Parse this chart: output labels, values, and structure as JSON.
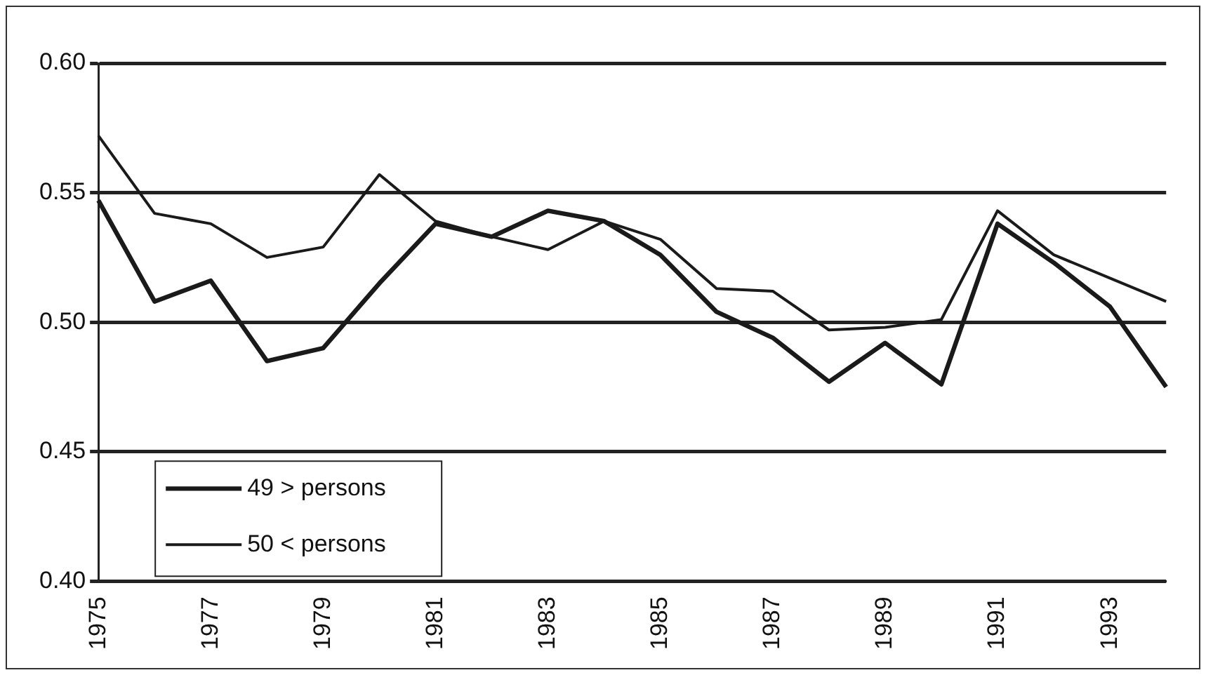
{
  "chart_data": {
    "type": "line",
    "categories": [
      "1975",
      null,
      "1977",
      null,
      "1979",
      null,
      "1981",
      null,
      "1983",
      null,
      "1985",
      null,
      "1987",
      null,
      "1989",
      null,
      "1991",
      null,
      "1993",
      null
    ],
    "series": [
      {
        "name": "49 > persons",
        "color": "#1a1a1a",
        "values": [
          0.547,
          0.508,
          0.516,
          0.485,
          0.49,
          0.515,
          0.538,
          0.533,
          0.543,
          0.539,
          0.526,
          0.504,
          0.494,
          0.477,
          0.492,
          0.476,
          0.538,
          0.523,
          0.506,
          0.475
        ]
      },
      {
        "name": "50 < persons",
        "color": "#1a1a1a",
        "values": [
          0.572,
          0.542,
          0.538,
          0.525,
          0.529,
          0.557,
          0.539,
          0.533,
          0.528,
          0.539,
          0.532,
          0.513,
          0.512,
          0.497,
          0.498,
          0.501,
          0.543,
          0.526,
          0.517,
          0.508
        ]
      }
    ],
    "ylim": [
      0.4,
      0.6
    ],
    "yticks": [
      {
        "value": 0.4,
        "label": "0.40"
      },
      {
        "value": 0.45,
        "label": "0.45"
      },
      {
        "value": 0.5,
        "label": "0.50"
      },
      {
        "value": 0.55,
        "label": "0.55"
      },
      {
        "value": 0.6,
        "label": "0.60"
      }
    ],
    "grid": "y",
    "legend": "bottom left",
    "marker": "none",
    "line_style": "solid"
  }
}
